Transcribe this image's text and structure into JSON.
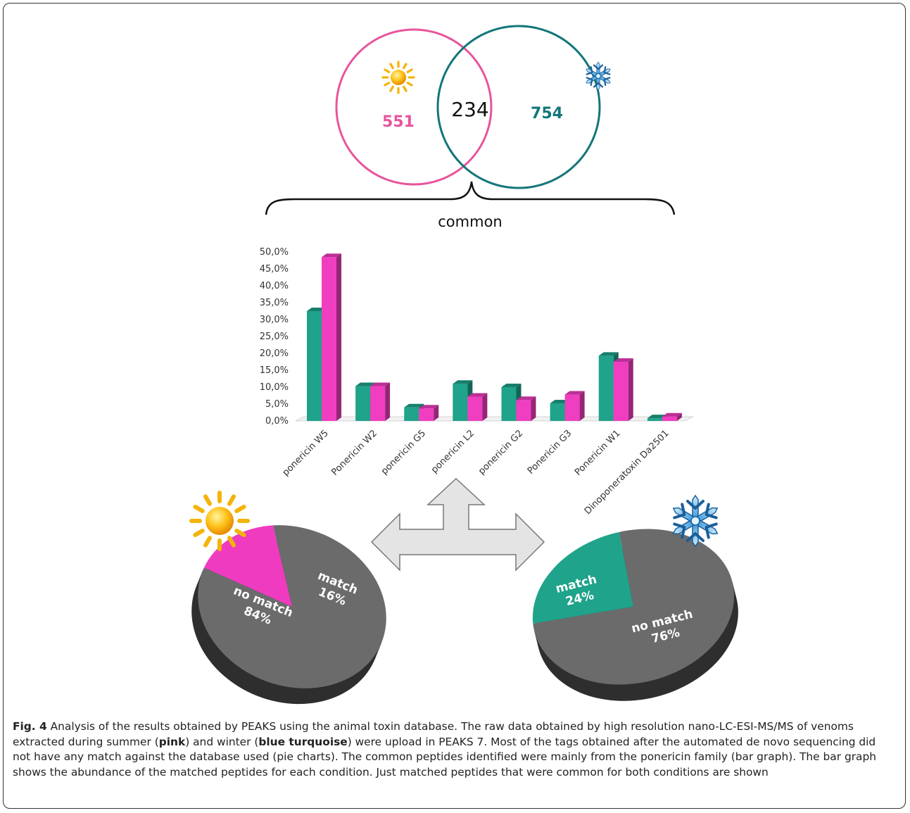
{
  "venn": {
    "left_value": "551",
    "center_value": "234",
    "right_value": "754",
    "bracket_label": "common",
    "left_color": "#e8549c",
    "right_color": "#13767a",
    "left_icon": "sun-icon",
    "right_icon": "snowflake-icon"
  },
  "chart_data": [
    {
      "type": "bar",
      "categories": [
        "ponericin W5",
        "Ponericin W2",
        "ponericin G5",
        "ponericin L2",
        "ponericin G2",
        "Ponericin G3",
        "Ponericin W1",
        "Dinoponeratoxin Da2501"
      ],
      "series": [
        {
          "color": "#1fa38a",
          "values": [
            32.5,
            10.3,
            4.0,
            11.0,
            10.0,
            5.2,
            19.3,
            0.8
          ]
        },
        {
          "color": "#f03ec0",
          "values": [
            48.5,
            10.3,
            3.7,
            7.2,
            6.2,
            7.8,
            17.5,
            1.3
          ]
        }
      ],
      "yticks": [
        "0,0%",
        "5,0%",
        "10,0%",
        "15,0%",
        "20,0%",
        "25,0%",
        "30,0%",
        "35,0%",
        "40,0%",
        "45,0%",
        "50,0%"
      ],
      "ylim": [
        0,
        50
      ]
    },
    {
      "type": "pie",
      "icon": "sun-icon",
      "slices": [
        {
          "label": "no match",
          "pct_label": "84%",
          "value": 84,
          "color": "#6b6b6b"
        },
        {
          "label": "match",
          "pct_label": "16%",
          "value": 16,
          "color": "#ef3bc0"
        }
      ]
    },
    {
      "type": "pie",
      "icon": "snowflake-icon",
      "slices": [
        {
          "label": "match",
          "pct_label": "24%",
          "value": 24,
          "color": "#1fa38a"
        },
        {
          "label": "no match",
          "pct_label": "76%",
          "value": 76,
          "color": "#6b6b6b"
        }
      ]
    }
  ],
  "arrow_icon": "three-way-arrow-icon",
  "caption": {
    "fig_label": "Fig. 4",
    "text1": " Analysis of the results obtained by PEAKS using the animal toxin database. The raw data obtained by high resolution nano-LC-ESI-MS/MS of venoms extracted during summer (",
    "bold1": "pink",
    "text2": ") and winter (",
    "bold2": "blue turquoise",
    "text3": ") were upload in PEAKS 7. Most of the tags obtained after the automated de novo sequencing did not have any match against the database used (pie charts). The common peptides identified were mainly from the ponericin family (bar graph). The bar graph shows the abundance of the matched peptides for each condition. Just matched peptides that were common for both conditions are shown"
  }
}
